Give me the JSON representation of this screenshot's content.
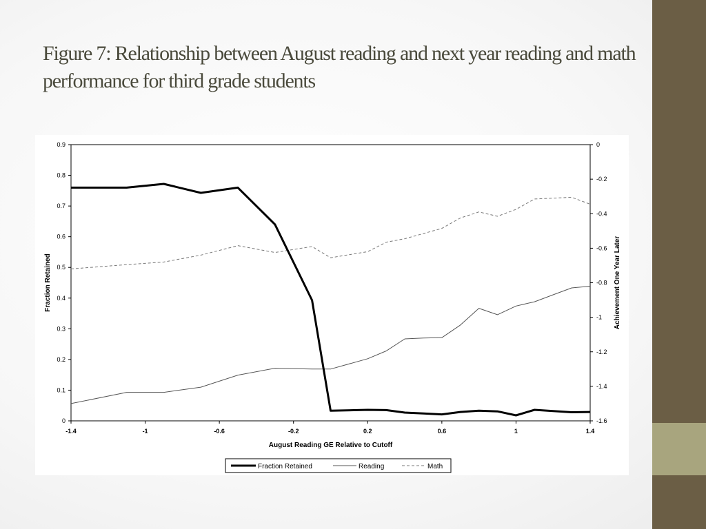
{
  "slide": {
    "title": "Figure 7: Relationship between August reading and next year reading and math performance for third grade students",
    "colors": {
      "side_bar": "#6b5e45",
      "side_accent": "#a8a57e",
      "title": "#4a4a3c"
    }
  },
  "chart_data": {
    "type": "line",
    "title": "",
    "xlabel": "August Reading GE Relative to Cutoff",
    "ylabel_left": "Fraction Retained",
    "ylabel_right": "Achievement One Year Later",
    "xlim": [
      -1.4,
      1.4
    ],
    "ylim_left": [
      0,
      0.9
    ],
    "ylim_right": [
      -1.6,
      0
    ],
    "x_ticks": [
      -1.4,
      -1,
      -0.6,
      -0.2,
      0.2,
      0.6,
      1,
      1.4
    ],
    "x_tick_labels": [
      "-1.4",
      "-1",
      "-0.6",
      "-0.2",
      "0.2",
      "0.6",
      "1",
      "1.4"
    ],
    "y_left_ticks": [
      0,
      0.1,
      0.2,
      0.3,
      0.4,
      0.5,
      0.6,
      0.7,
      0.8,
      0.9
    ],
    "y_left_tick_labels": [
      "0",
      "0.1",
      "0.2",
      "0.3",
      "0.4",
      "0.5",
      "0.6",
      "0.7",
      "0.8",
      "0.9"
    ],
    "y_right_ticks": [
      0,
      -0.2,
      -0.4,
      -0.6,
      -0.8,
      -1,
      -1.2,
      -1.4,
      -1.6
    ],
    "y_right_tick_labels": [
      "0",
      "-0.2",
      "-0.4",
      "-0.6",
      "-0.8",
      "-1",
      "-1.2",
      "-1.4",
      "-1.6"
    ],
    "grid": false,
    "legend_position": "bottom-center",
    "series": [
      {
        "name": "Fraction Retained",
        "axis": "left",
        "style": "thick-solid",
        "color": "#000000",
        "x": [
          -1.4,
          -1.1,
          -0.9,
          -0.7,
          -0.5,
          -0.3,
          -0.1,
          0.0,
          0.2,
          0.3,
          0.4,
          0.5,
          0.6,
          0.7,
          0.8,
          0.9,
          1.0,
          1.1,
          1.2,
          1.3,
          1.4
        ],
        "y": [
          0.76,
          0.76,
          0.772,
          0.743,
          0.76,
          0.64,
          0.393,
          0.033,
          0.036,
          0.035,
          0.027,
          0.024,
          0.021,
          0.029,
          0.033,
          0.031,
          0.018,
          0.036,
          0.032,
          0.028,
          0.029
        ]
      },
      {
        "name": "Reading",
        "axis": "right",
        "style": "thin-solid",
        "color": "#555555",
        "x": [
          -1.4,
          -1.1,
          -0.9,
          -0.7,
          -0.5,
          -0.3,
          -0.1,
          0.0,
          0.2,
          0.3,
          0.4,
          0.5,
          0.6,
          0.7,
          0.8,
          0.9,
          1.0,
          1.1,
          1.2,
          1.3,
          1.4
        ],
        "y": [
          -1.5,
          -1.435,
          -1.435,
          -1.405,
          -1.335,
          -1.295,
          -1.3,
          -1.3,
          -1.24,
          -1.195,
          -1.125,
          -1.12,
          -1.118,
          -1.045,
          -0.948,
          -0.985,
          -0.935,
          -0.91,
          -0.87,
          -0.83,
          -0.82
        ]
      },
      {
        "name": "Math",
        "axis": "right",
        "style": "dashed",
        "color": "#777777",
        "x": [
          -1.4,
          -1.1,
          -0.9,
          -0.7,
          -0.5,
          -0.3,
          -0.1,
          0.0,
          0.2,
          0.3,
          0.4,
          0.5,
          0.6,
          0.7,
          0.8,
          0.9,
          1.0,
          1.1,
          1.2,
          1.3,
          1.4
        ],
        "y": [
          -0.72,
          -0.695,
          -0.68,
          -0.64,
          -0.585,
          -0.625,
          -0.59,
          -0.655,
          -0.62,
          -0.565,
          -0.545,
          -0.515,
          -0.485,
          -0.425,
          -0.39,
          -0.415,
          -0.375,
          -0.315,
          -0.31,
          -0.305,
          -0.345
        ]
      }
    ]
  }
}
